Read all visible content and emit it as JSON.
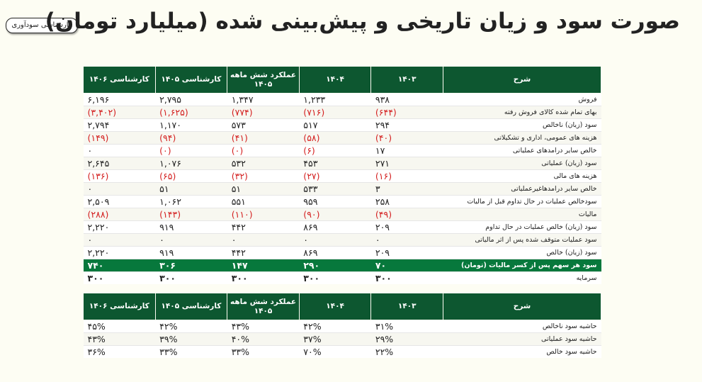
{
  "badge": "کارشناسی سودآوری",
  "title": "صورت سود و زیان تاریخی و پیش‌بینی شده (میلیارد تومان)",
  "headers": [
    "شرح",
    "۱۴۰۳",
    "۱۴۰۴",
    "عملکرد شش ماهه ۱۴۰۵",
    "کارشناسی ۱۴۰۵",
    "کارشناسی ۱۴۰۶"
  ],
  "rows": [
    {
      "label": "فروش",
      "values": [
        "۹۳۸",
        "۱,۲۳۳",
        "۱,۳۴۷",
        "۲,۷۹۵",
        "۶,۱۹۶"
      ]
    },
    {
      "label": "بهای تمام شده کالای فروش رفته",
      "values": [
        "(۶۴۴)",
        "(۷۱۶)",
        "(۷۷۴)",
        "(۱,۶۲۵)",
        "(۳,۴۰۲)"
      ]
    },
    {
      "label": "سود (زیان) ناخالص",
      "values": [
        "۲۹۴",
        "۵۱۷",
        "۵۷۳",
        "۱,۱۷۰",
        "۲,۷۹۴"
      ]
    },
    {
      "label": "هزینه های عمومی، اداری و تشکیلاتی",
      "values": [
        "(۴۰)",
        "(۵۸)",
        "(۴۱)",
        "(۹۴)",
        "(۱۴۹)"
      ]
    },
    {
      "label": "خالص سایر درامدهای  عملیاتی",
      "values": [
        "۱۷",
        "(۶)",
        "(۰)",
        "(۰)",
        "۰"
      ]
    },
    {
      "label": "سود (زیان) عملیاتی",
      "values": [
        "۲۷۱",
        "۴۵۳",
        "۵۳۲",
        "۱,۰۷۶",
        "۲,۶۴۵"
      ]
    },
    {
      "label": "هزینه های مالی",
      "values": [
        "(۱۶)",
        "(۲۷)",
        "(۳۲)",
        "(۶۵)",
        "(۱۳۶)"
      ]
    },
    {
      "label": "خالص سایر درامدهاغیرعملیاتی",
      "values": [
        "۳",
        "۵۳۳",
        "۵۱",
        "۵۱",
        "۰"
      ]
    },
    {
      "label": "سودخالص عملیات در حال تداوم قبل از مالیات",
      "values": [
        "۲۵۸",
        "۹۵۹",
        "۵۵۱",
        "۱,۰۶۲",
        "۲,۵۰۹"
      ]
    },
    {
      "label": "مالیات",
      "values": [
        "(۴۹)",
        "(۹۰)",
        "(۱۱۰)",
        "(۱۴۳)",
        "(۲۸۸)"
      ]
    },
    {
      "label": "سود (زیان) خالص عملیات در حال تداوم",
      "values": [
        "۲۰۹",
        "۸۶۹",
        "۴۴۲",
        "۹۱۹",
        "۲,۲۲۰"
      ]
    },
    {
      "label": "سود عملیات متوقف شده پس از اثر مالیاتی",
      "values": [
        "۰",
        "۰",
        "۰",
        "۰",
        "۰"
      ]
    },
    {
      "label": "سود (زیان) خالص",
      "values": [
        "۲۰۹",
        "۸۶۹",
        "۴۴۲",
        "۹۱۹",
        "۲,۲۲۰"
      ]
    },
    {
      "label": "سود هر سهم پس از کسر مالیات (تومان)",
      "values": [
        "۷۰",
        "۲۹۰",
        "۱۴۷",
        "۳۰۶",
        "۷۴۰"
      ],
      "highlight": true
    },
    {
      "label": "سرمایه",
      "values": [
        "۳۰۰",
        "۳۰۰",
        "۳۰۰",
        "۳۰۰",
        "۳۰۰"
      ],
      "bold": true
    }
  ],
  "margins": [
    {
      "label": "حاشیه سود ناخالص",
      "values": [
        "۳۱%",
        "۴۲%",
        "۴۳%",
        "۴۲%",
        "۴۵%"
      ]
    },
    {
      "label": "حاشیه سود عملیاتی",
      "values": [
        "۲۹%",
        "۳۷%",
        "۴۰%",
        "۳۹%",
        "۴۳%"
      ]
    },
    {
      "label": "حاشیه سود خالص",
      "values": [
        "۲۲%",
        "۷۰%",
        "۳۳%",
        "۳۳%",
        "۳۶%"
      ]
    }
  ]
}
